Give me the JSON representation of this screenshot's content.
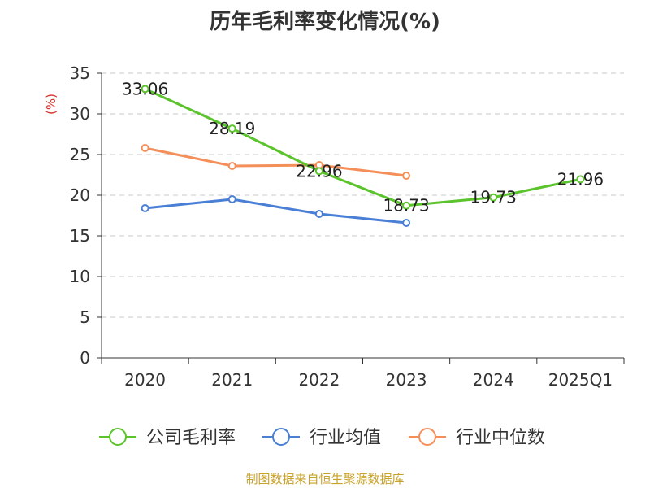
{
  "chart_data": {
    "type": "line",
    "title": "历年毛利率变化情况(%)",
    "ylabel": "(%)",
    "xlabel": "",
    "categories": [
      "2020",
      "2021",
      "2022",
      "2023",
      "2024",
      "2025Q1"
    ],
    "yticks": [
      "0",
      "5",
      "10",
      "15",
      "20",
      "25",
      "30",
      "35"
    ],
    "ylim": [
      0,
      35
    ],
    "grid": true,
    "legend_position": "bottom",
    "series": [
      {
        "name": "公司毛利率",
        "color": "#5bc32b",
        "values": [
          33.06,
          28.19,
          22.96,
          18.73,
          19.73,
          21.96
        ],
        "labels": [
          "33.06",
          "28.19",
          "22.96",
          "18.73",
          "19.73",
          "21.96"
        ]
      },
      {
        "name": "行业均值",
        "color": "#4a7fd6",
        "values": [
          18.4,
          19.5,
          17.7,
          16.6,
          null,
          null
        ]
      },
      {
        "name": "行业中位数",
        "color": "#f48f5a",
        "values": [
          25.8,
          23.6,
          23.7,
          22.4,
          null,
          null
        ]
      }
    ]
  },
  "footer": "制图数据来自恒生聚源数据库"
}
